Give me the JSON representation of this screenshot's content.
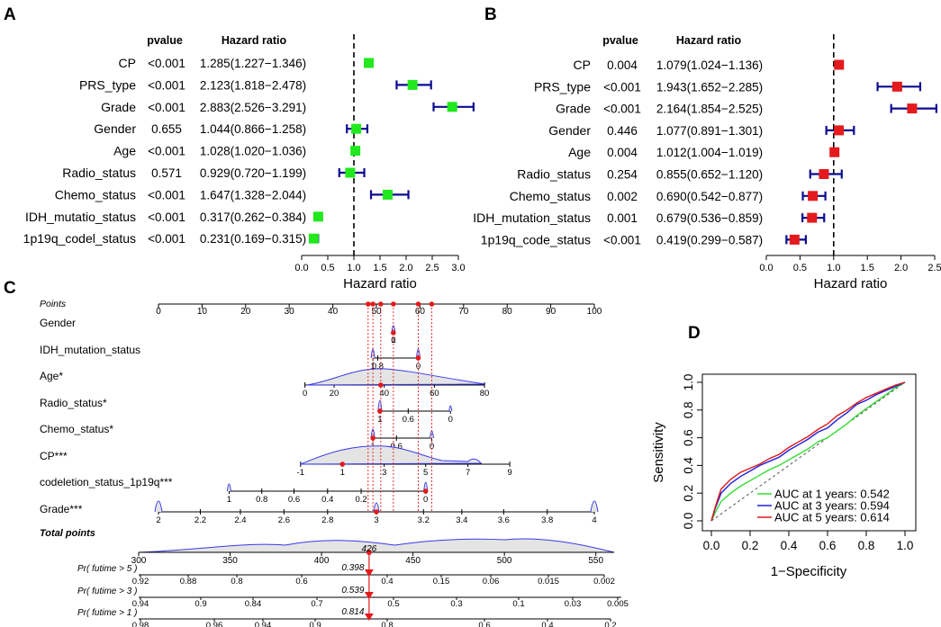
{
  "colors": {
    "green": "#22e81e",
    "red": "#e41a1c",
    "navy": "#0b0b8f",
    "blue": "#1f2ff0",
    "nomo_blue": "#3a3ae8",
    "roc_green": "#33dd33",
    "roc_blue": "#2020e0",
    "roc_red": "#e01818"
  },
  "chart_data": [
    {
      "panel": "A",
      "type": "forest",
      "headers": {
        "pvalue": "pvalue",
        "hr": "Hazard ratio"
      },
      "rows": [
        {
          "label": "CP",
          "p": "<0.001",
          "ci": "1.285(1.227−1.346)",
          "hr": 1.285,
          "lo": 1.227,
          "hi": 1.346
        },
        {
          "label": "PRS_type",
          "p": "<0.001",
          "ci": "2.123(1.818−2.478)",
          "hr": 2.123,
          "lo": 1.818,
          "hi": 2.478
        },
        {
          "label": "Grade",
          "p": "<0.001",
          "ci": "2.883(2.526−3.291)",
          "hr": 2.883,
          "lo": 2.526,
          "hi": 3.291
        },
        {
          "label": "Gender",
          "p": "0.655",
          "ci": "1.044(0.866−1.258)",
          "hr": 1.044,
          "lo": 0.866,
          "hi": 1.258
        },
        {
          "label": "Age",
          "p": "<0.001",
          "ci": "1.028(1.020−1.036)",
          "hr": 1.028,
          "lo": 1.02,
          "hi": 1.036
        },
        {
          "label": "Radio_status",
          "p": "0.571",
          "ci": "0.929(0.720−1.199)",
          "hr": 0.929,
          "lo": 0.72,
          "hi": 1.199
        },
        {
          "label": "Chemo_status",
          "p": "<0.001",
          "ci": "1.647(1.328−2.044)",
          "hr": 1.647,
          "lo": 1.328,
          "hi": 2.044
        },
        {
          "label": "IDH_mutatio_status",
          "p": "<0.001",
          "ci": "0.317(0.262−0.384)",
          "hr": 0.317,
          "lo": 0.262,
          "hi": 0.384
        },
        {
          "label": "1p19q_codel_status",
          "p": "<0.001",
          "ci": "0.231(0.169−0.315)",
          "hr": 0.231,
          "lo": 0.169,
          "hi": 0.315
        }
      ],
      "xlim": [
        0,
        3
      ],
      "ticks": [
        "0.0",
        "0.5",
        "1.0",
        "1.5",
        "2.0",
        "2.5",
        "3.0"
      ],
      "xlabel": "Hazard ratio",
      "refline": 1
    },
    {
      "panel": "B",
      "type": "forest",
      "headers": {
        "pvalue": "pvalue",
        "hr": "Hazard ratio"
      },
      "rows": [
        {
          "label": "CP",
          "p": "0.004",
          "ci": "1.079(1.024−1.136)",
          "hr": 1.079,
          "lo": 1.024,
          "hi": 1.136
        },
        {
          "label": "PRS_type",
          "p": "<0.001",
          "ci": "1.943(1.652−2.285)",
          "hr": 1.943,
          "lo": 1.652,
          "hi": 2.285
        },
        {
          "label": "Grade",
          "p": "<0.001",
          "ci": "2.164(1.854−2.525)",
          "hr": 2.164,
          "lo": 1.854,
          "hi": 2.525
        },
        {
          "label": "Gender",
          "p": "0.446",
          "ci": "1.077(0.891−1.301)",
          "hr": 1.077,
          "lo": 0.891,
          "hi": 1.301
        },
        {
          "label": "Age",
          "p": "0.004",
          "ci": "1.012(1.004−1.019)",
          "hr": 1.012,
          "lo": 1.004,
          "hi": 1.019
        },
        {
          "label": "Radio_status",
          "p": "0.254",
          "ci": "0.855(0.652−1.120)",
          "hr": 0.855,
          "lo": 0.652,
          "hi": 1.12
        },
        {
          "label": "Chemo_status",
          "p": "0.002",
          "ci": "0.690(0.542−0.877)",
          "hr": 0.69,
          "lo": 0.542,
          "hi": 0.877
        },
        {
          "label": "IDH_mutation_status",
          "p": "0.001",
          "ci": "0.679(0.536−0.859)",
          "hr": 0.679,
          "lo": 0.536,
          "hi": 0.859
        },
        {
          "label": "1p19q_code_status",
          "p": "<0.001",
          "ci": "0.419(0.299−0.587)",
          "hr": 0.419,
          "lo": 0.299,
          "hi": 0.587
        }
      ],
      "xlim": [
        0,
        2.5
      ],
      "ticks": [
        "0.0",
        "0.5",
        "1.0",
        "1.5",
        "2.0",
        "2.5"
      ],
      "xlabel": "Hazard ratio",
      "refline": 1
    },
    {
      "panel": "C",
      "type": "nomogram",
      "points_label": "Points",
      "points_ticks": [
        "0",
        "10",
        "20",
        "30",
        "40",
        "50",
        "60",
        "70",
        "80",
        "90",
        "100"
      ],
      "variables": [
        {
          "label": "Gender",
          "ticks": [
            {
              "v": 53.9,
              "t": "1"
            },
            {
              "v": 53.9,
              "t": "0"
            }
          ]
        },
        {
          "label": "IDH_mutation_status",
          "ticks": [
            {
              "v": 49.2,
              "t": "1"
            },
            {
              "v": 50.3,
              "t": "0.8"
            },
            {
              "v": 59.6,
              "t": "0"
            }
          ]
        },
        {
          "label": "Age*",
          "ticks": [
            {
              "v": 33.6,
              "t": "0"
            },
            {
              "v": 40.3,
              "t": "20"
            },
            {
              "v": 51.8,
              "t": "40"
            },
            {
              "v": 63.3,
              "t": "60"
            },
            {
              "v": 74.8,
              "t": "80"
            }
          ]
        },
        {
          "label": "Radio_status*",
          "ticks": [
            {
              "v": 50.8,
              "t": "1"
            },
            {
              "v": 57.3,
              "t": "0.6"
            },
            {
              "v": 67.0,
              "t": "0"
            }
          ]
        },
        {
          "label": "Chemo_status*",
          "ticks": [
            {
              "v": 49.2,
              "t": "1"
            },
            {
              "v": 54.6,
              "t": "0.6"
            },
            {
              "v": 62.7,
              "t": "0"
            }
          ]
        },
        {
          "label": "CP***",
          "ticks": [
            {
              "v": 32.6,
              "t": "-1"
            },
            {
              "v": 42.2,
              "t": "1"
            },
            {
              "v": 51.8,
              "t": "3"
            },
            {
              "v": 61.3,
              "t": "5"
            },
            {
              "v": 71.0,
              "t": "7"
            },
            {
              "v": 80.6,
              "t": "9"
            }
          ]
        },
        {
          "label": "codeletion_status_1p19q***",
          "ticks": [
            {
              "v": 16.2,
              "t": "1"
            },
            {
              "v": 23.7,
              "t": "0.8"
            },
            {
              "v": 31.1,
              "t": "0.6"
            },
            {
              "v": 38.8,
              "t": "0.4"
            },
            {
              "v": 46.5,
              "t": "0.2"
            },
            {
              "v": 61.3,
              "t": "0"
            }
          ]
        },
        {
          "label": "Grade***",
          "ticks": [
            {
              "v": 0,
              "t": "2"
            },
            {
              "v": 9.6,
              "t": "2.2"
            },
            {
              "v": 18.8,
              "t": "2.4"
            },
            {
              "v": 28.8,
              "t": "2.6"
            },
            {
              "v": 38.8,
              "t": "2.8"
            },
            {
              "v": 50.0,
              "t": "3"
            },
            {
              "v": 60.8,
              "t": "3.2"
            },
            {
              "v": 69.6,
              "t": "3.4"
            },
            {
              "v": 79.2,
              "t": "3.6"
            },
            {
              "v": 89.2,
              "t": "3.8"
            },
            {
              "v": 100,
              "t": "4"
            }
          ]
        }
      ],
      "marker_points": [
        48.1,
        49.2,
        51.0,
        53.9,
        59.6,
        62.7
      ],
      "total_label": "Total points",
      "total_ticks": [
        "300",
        "350",
        "400",
        "450",
        "500",
        "550"
      ],
      "total_value": 426,
      "total_value_label": "426",
      "prob_rows": [
        {
          "label": "Pr( futime > 5 )",
          "value": "0.398",
          "ticks": [
            "0.92",
            "0.88",
            "0.8",
            "0.6",
            "0.4",
            "0.15",
            "0.06",
            "0.015",
            "0.002"
          ]
        },
        {
          "label": "Pr( futime > 3 )",
          "value": "0.539",
          "ticks": [
            "0.94",
            "0.9",
            "0.84",
            "0.7",
            "0.5",
            "0.3",
            "0.1",
            "0.03",
            "0.005"
          ]
        },
        {
          "label": "Pr( futime > 1 )",
          "value": "0.814",
          "ticks": [
            "0.98",
            "0.96",
            "0.94",
            "0.9",
            "0.8",
            "0.6",
            "0.4",
            "0.2"
          ]
        }
      ]
    },
    {
      "panel": "D",
      "type": "line",
      "xlabel": "1−Specificity",
      "ylabel": "Sensitivity",
      "xlim": [
        0,
        1
      ],
      "ylim": [
        0,
        1
      ],
      "ticks": [
        "0.0",
        "0.2",
        "0.4",
        "0.6",
        "0.8",
        "1.0"
      ],
      "series": [
        {
          "name": "AUC at 1 years: 0.542",
          "color": "#33dd33",
          "x": [
            0,
            0.02,
            0.05,
            0.1,
            0.15,
            0.2,
            0.25,
            0.3,
            0.35,
            0.4,
            0.45,
            0.5,
            0.55,
            0.6,
            0.65,
            0.7,
            0.75,
            0.8,
            0.85,
            0.9,
            0.95,
            1.0
          ],
          "y": [
            0,
            0.06,
            0.14,
            0.2,
            0.25,
            0.29,
            0.33,
            0.37,
            0.4,
            0.44,
            0.48,
            0.52,
            0.57,
            0.6,
            0.65,
            0.7,
            0.76,
            0.81,
            0.86,
            0.91,
            0.96,
            1.0
          ]
        },
        {
          "name": "AUC at 3 years: 0.594",
          "color": "#2020e0",
          "x": [
            0,
            0.02,
            0.05,
            0.1,
            0.15,
            0.2,
            0.25,
            0.3,
            0.35,
            0.4,
            0.45,
            0.5,
            0.55,
            0.6,
            0.65,
            0.7,
            0.75,
            0.8,
            0.85,
            0.9,
            0.95,
            1.0
          ],
          "y": [
            0,
            0.09,
            0.2,
            0.27,
            0.32,
            0.36,
            0.4,
            0.43,
            0.46,
            0.51,
            0.55,
            0.59,
            0.64,
            0.67,
            0.73,
            0.78,
            0.84,
            0.87,
            0.91,
            0.94,
            0.97,
            1.0
          ]
        },
        {
          "name": "AUC at 5 years: 0.614",
          "color": "#e01818",
          "x": [
            0,
            0.02,
            0.05,
            0.1,
            0.15,
            0.2,
            0.25,
            0.3,
            0.35,
            0.4,
            0.45,
            0.5,
            0.55,
            0.6,
            0.65,
            0.7,
            0.75,
            0.8,
            0.85,
            0.9,
            0.95,
            1.0
          ],
          "y": [
            0,
            0.1,
            0.23,
            0.3,
            0.35,
            0.38,
            0.41,
            0.45,
            0.48,
            0.53,
            0.57,
            0.61,
            0.66,
            0.7,
            0.76,
            0.8,
            0.85,
            0.89,
            0.92,
            0.95,
            0.98,
            1.0
          ]
        }
      ]
    }
  ],
  "panel_labels": [
    "A",
    "B",
    "C",
    "D"
  ]
}
